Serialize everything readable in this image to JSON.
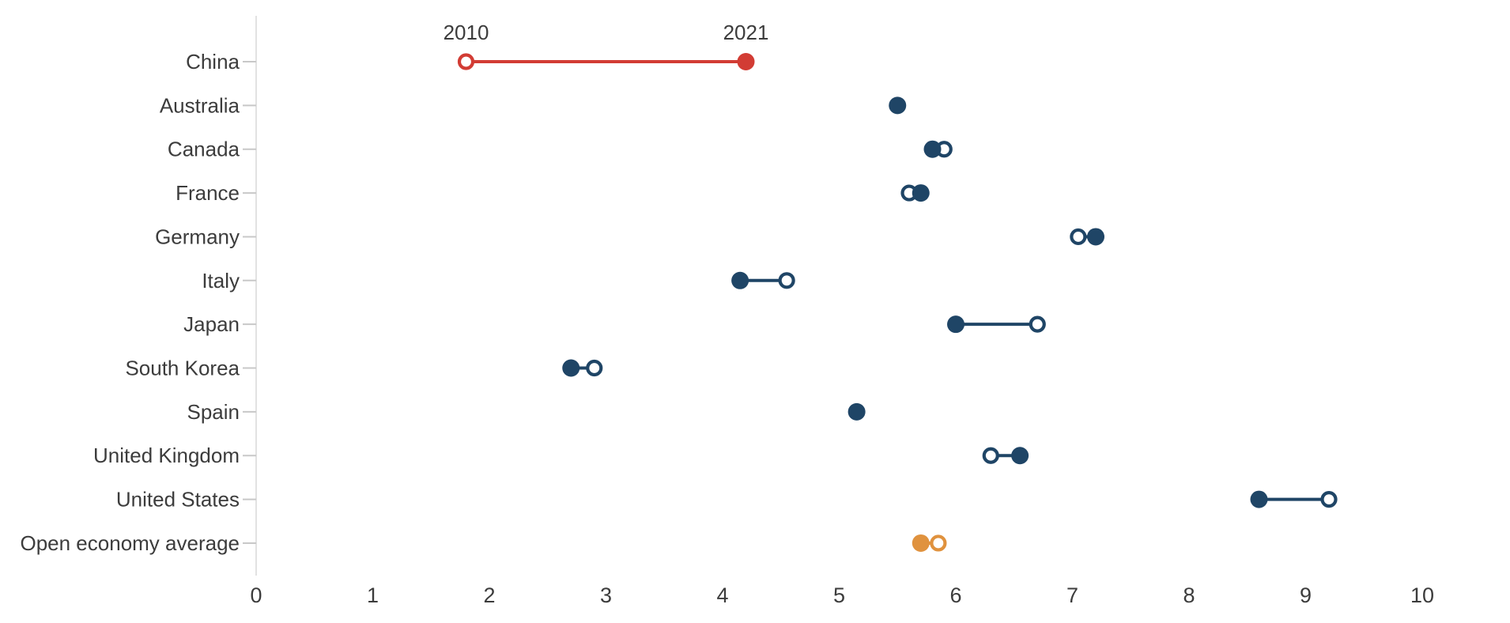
{
  "chart_data": {
    "type": "dumbbell",
    "title": "",
    "xlabel": "",
    "ylabel": "",
    "legend_position": "inline-annotation-on-first-row",
    "grid": false,
    "year_labels": {
      "start": "2010",
      "end": "2021"
    },
    "x_axis": {
      "min": 0,
      "max": 10,
      "ticks": [
        0,
        1,
        2,
        3,
        4,
        5,
        6,
        7,
        8,
        9,
        10
      ]
    },
    "series": [
      {
        "name": "2010",
        "marker": "open-circle"
      },
      {
        "name": "2021",
        "marker": "filled-circle"
      }
    ],
    "categories": [
      "China",
      "Australia",
      "Canada",
      "France",
      "Germany",
      "Italy",
      "Japan",
      "South Korea",
      "Spain",
      "United Kingdom",
      "United States",
      "Open economy average"
    ],
    "rows": [
      {
        "label": "China",
        "value_2010": 1.8,
        "value_2021": 4.2,
        "color": "#d23c34"
      },
      {
        "label": "Australia",
        "value_2010": 5.5,
        "value_2021": 5.5,
        "color": "#1f4566"
      },
      {
        "label": "Canada",
        "value_2010": 5.9,
        "value_2021": 5.8,
        "color": "#1f4566"
      },
      {
        "label": "France",
        "value_2010": 5.6,
        "value_2021": 5.7,
        "color": "#1f4566"
      },
      {
        "label": "Germany",
        "value_2010": 7.05,
        "value_2021": 7.2,
        "color": "#1f4566"
      },
      {
        "label": "Italy",
        "value_2010": 4.55,
        "value_2021": 4.15,
        "color": "#1f4566"
      },
      {
        "label": "Japan",
        "value_2010": 6.7,
        "value_2021": 6.0,
        "color": "#1f4566"
      },
      {
        "label": "South Korea",
        "value_2010": 2.9,
        "value_2021": 2.7,
        "color": "#1f4566"
      },
      {
        "label": "Spain",
        "value_2010": 5.15,
        "value_2021": 5.15,
        "color": "#1f4566"
      },
      {
        "label": "United Kingdom",
        "value_2010": 6.3,
        "value_2021": 6.55,
        "color": "#1f4566"
      },
      {
        "label": "United States",
        "value_2010": 9.2,
        "value_2021": 8.6,
        "color": "#1f4566"
      },
      {
        "label": "Open economy average",
        "value_2010": 5.85,
        "value_2021": 5.7,
        "color": "#e0923e"
      }
    ],
    "colors": {
      "default_series": "#1f4566",
      "china_highlight": "#d23c34",
      "average_highlight": "#e0923e",
      "axis_line": "#d8d8d8",
      "category_tick": "#c8c8c8",
      "text": "#3c3c3c"
    }
  }
}
